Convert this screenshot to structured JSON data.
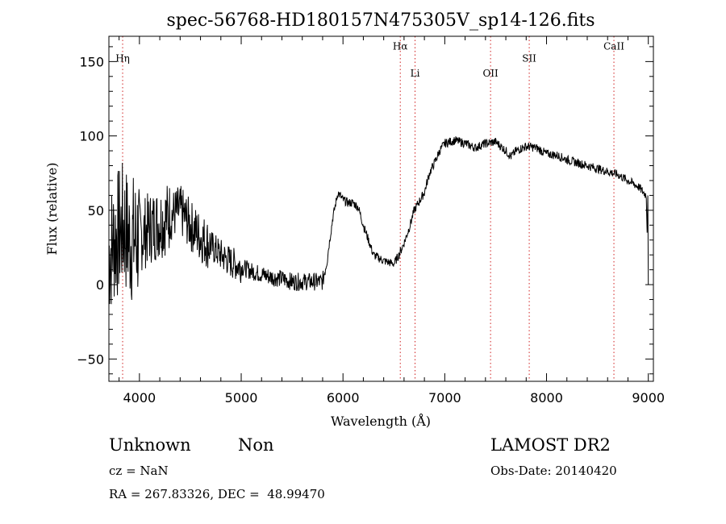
{
  "chart_data": {
    "type": "line",
    "title": "spec-56768-HD180157N475305V_sp14-126.fits",
    "xlabel": "Wavelength (Å)",
    "ylabel": "Flux (relative)",
    "xlim": [
      3700,
      9050
    ],
    "ylim": [
      -65,
      167
    ],
    "x_ticks": [
      4000,
      5000,
      6000,
      7000,
      8000,
      9000
    ],
    "y_ticks": [
      -50,
      0,
      50,
      100,
      150
    ],
    "x_tick_labels": [
      "4000",
      "5000",
      "6000",
      "7000",
      "8000",
      "9000"
    ],
    "y_tick_labels": [
      "−50",
      "0",
      "50",
      "100",
      "150"
    ],
    "line_markers": [
      {
        "label": "Hη",
        "x": 3835,
        "label_y": 150
      },
      {
        "label": "Hα",
        "x": 6563,
        "label_y": 158
      },
      {
        "label": "Li",
        "x": 6708,
        "label_y": 140
      },
      {
        "label": "OII",
        "x": 7450,
        "label_y": 140
      },
      {
        "label": "SII",
        "x": 7830,
        "label_y": 150
      },
      {
        "label": "CaII",
        "x": 8662,
        "label_y": 158
      }
    ],
    "series": [
      {
        "values_anchor": [
          [
            3700,
            20
          ],
          [
            3750,
            30
          ],
          [
            3800,
            35
          ],
          [
            3850,
            40
          ],
          [
            3900,
            30
          ],
          [
            4000,
            32
          ],
          [
            4100,
            38
          ],
          [
            4200,
            42
          ],
          [
            4300,
            46
          ],
          [
            4400,
            50
          ],
          [
            4500,
            40
          ],
          [
            4600,
            32
          ],
          [
            4700,
            26
          ],
          [
            4800,
            20
          ],
          [
            4900,
            15
          ],
          [
            5000,
            12
          ],
          [
            5100,
            9
          ],
          [
            5200,
            7
          ],
          [
            5300,
            5
          ],
          [
            5400,
            4
          ],
          [
            5500,
            2
          ],
          [
            5600,
            2
          ],
          [
            5700,
            2
          ],
          [
            5800,
            2
          ],
          [
            5850,
            20
          ],
          [
            5900,
            45
          ],
          [
            5950,
            62
          ],
          [
            6000,
            57
          ],
          [
            6050,
            55
          ],
          [
            6100,
            55
          ],
          [
            6150,
            52
          ],
          [
            6200,
            40
          ],
          [
            6250,
            30
          ],
          [
            6300,
            20
          ],
          [
            6400,
            16
          ],
          [
            6450,
            15
          ],
          [
            6500,
            14
          ],
          [
            6550,
            20
          ],
          [
            6600,
            28
          ],
          [
            6650,
            38
          ],
          [
            6700,
            50
          ],
          [
            6800,
            62
          ],
          [
            6850,
            75
          ],
          [
            6900,
            82
          ],
          [
            6950,
            90
          ],
          [
            7000,
            95
          ],
          [
            7100,
            97
          ],
          [
            7200,
            95
          ],
          [
            7300,
            92
          ],
          [
            7400,
            95
          ],
          [
            7500,
            96
          ],
          [
            7600,
            90
          ],
          [
            7650,
            86
          ],
          [
            7700,
            90
          ],
          [
            7800,
            93
          ],
          [
            7900,
            92
          ],
          [
            8000,
            88
          ],
          [
            8100,
            87
          ],
          [
            8200,
            84
          ],
          [
            8300,
            82
          ],
          [
            8400,
            80
          ],
          [
            8500,
            78
          ],
          [
            8600,
            76
          ],
          [
            8700,
            74
          ],
          [
            8800,
            70
          ],
          [
            8900,
            66
          ],
          [
            8980,
            60
          ],
          [
            9000,
            0
          ]
        ]
      }
    ]
  },
  "footer": {
    "object_class": "Unknown",
    "subclass": "Non",
    "survey": "LAMOST DR2",
    "cz": "cz = NaN",
    "obs_date": "Obs-Date: 20140420",
    "coords": "RA = 267.83326, DEC =  48.99470"
  }
}
